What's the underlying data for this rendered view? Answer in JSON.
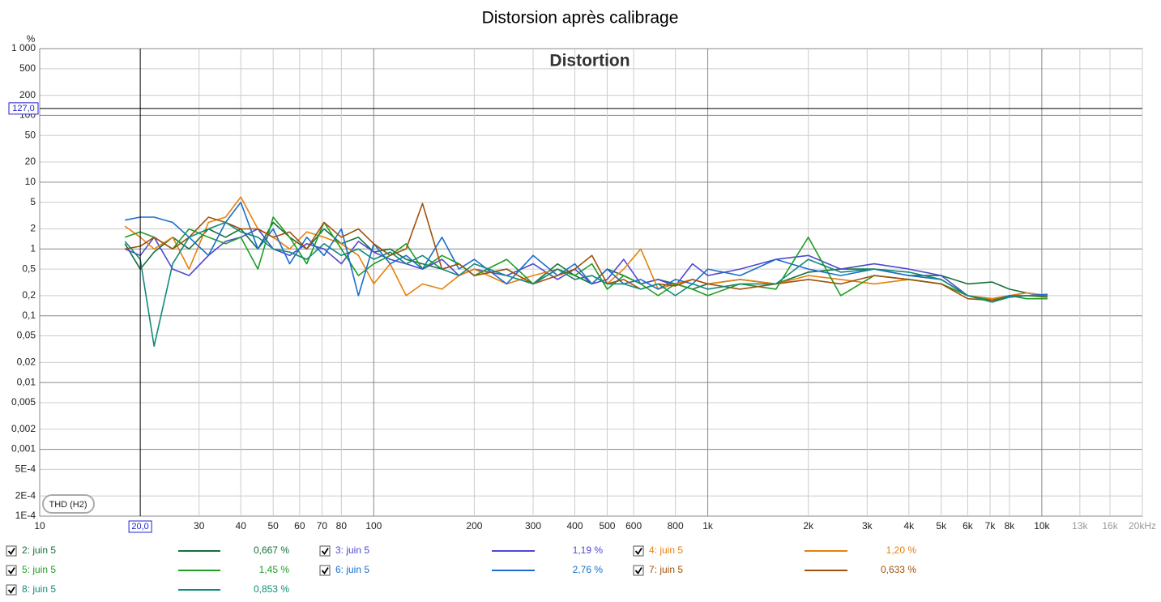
{
  "chart_data": {
    "type": "line",
    "title": "Distorsion après calibrage",
    "plot_title": "Distortion",
    "y_unit": "%",
    "log_x": true,
    "log_y": true,
    "grid": true,
    "xlim": [
      10,
      20000
    ],
    "ylim": [
      0.0001,
      1000
    ],
    "xticks": [
      10,
      30,
      40,
      50,
      60,
      70,
      80,
      100,
      200,
      300,
      400,
      500,
      600,
      800,
      {
        "value": 1000,
        "label": "1k"
      },
      {
        "value": 2000,
        "label": "2k"
      },
      {
        "value": 3000,
        "label": "3k"
      },
      {
        "value": 4000,
        "label": "4k"
      },
      {
        "value": 5000,
        "label": "5k"
      },
      {
        "value": 6000,
        "label": "6k"
      },
      {
        "value": 7000,
        "label": "7k"
      },
      {
        "value": 8000,
        "label": "8k"
      },
      {
        "value": 10000,
        "label": "10k"
      },
      {
        "value": 13000,
        "label": "13k"
      },
      {
        "value": 16000,
        "label": "16k"
      },
      {
        "value": 20000,
        "label": "20kHz"
      }
    ],
    "yticks": [
      {
        "value": 1000,
        "label": "1 000"
      },
      500,
      200,
      100,
      50,
      20,
      10,
      5,
      2,
      1,
      {
        "value": 0.5,
        "label": "0,5"
      },
      {
        "value": 0.2,
        "label": "0,2"
      },
      {
        "value": 0.1,
        "label": "0,1"
      },
      {
        "value": 0.05,
        "label": "0,05"
      },
      {
        "value": 0.02,
        "label": "0,02"
      },
      {
        "value": 0.01,
        "label": "0,01"
      },
      {
        "value": 0.005,
        "label": "0,005"
      },
      {
        "value": 0.002,
        "label": "0,002"
      },
      {
        "value": 0.001,
        "label": "0,001"
      },
      {
        "value": 0.0005,
        "label": "5E-4"
      },
      {
        "value": 0.0002,
        "label": "2E-4"
      },
      {
        "value": 0.0001,
        "label": "1E-4"
      }
    ],
    "cursor": {
      "x": 20,
      "x_label": "20,0",
      "y": 127,
      "y_label": "127,0"
    },
    "button": "THD (H2)",
    "x": [
      18,
      20,
      22,
      25,
      28,
      32,
      36,
      40,
      45,
      50,
      56,
      63,
      71,
      80,
      90,
      100,
      112,
      125,
      140,
      160,
      180,
      200,
      250,
      300,
      355,
      400,
      450,
      500,
      560,
      630,
      710,
      800,
      900,
      1000,
      1250,
      1600,
      2000,
      2500,
      3150,
      4000,
      5000,
      6000,
      7100,
      8000,
      9000,
      10400
    ],
    "series": [
      {
        "name": "2: juin 5",
        "color": "#17703a",
        "readout": "0,667 %",
        "values": [
          1.2,
          0.5,
          0.9,
          1.5,
          1.0,
          2.0,
          1.5,
          2.0,
          1.0,
          2.5,
          1.5,
          1.0,
          2.0,
          1.2,
          1.5,
          0.9,
          1.0,
          0.7,
          0.6,
          0.5,
          0.6,
          0.4,
          0.5,
          0.3,
          0.6,
          0.4,
          0.3,
          0.5,
          0.4,
          0.3,
          0.35,
          0.3,
          0.25,
          0.3,
          0.35,
          0.3,
          0.45,
          0.5,
          0.5,
          0.4,
          0.4,
          0.3,
          0.32,
          0.25,
          0.22,
          0.2
        ]
      },
      {
        "name": "3: juin 5",
        "color": "#5048d0",
        "readout": "1,19 %",
        "values": [
          1.0,
          0.8,
          1.5,
          0.5,
          0.4,
          0.8,
          1.3,
          1.5,
          2.0,
          1.0,
          0.8,
          1.2,
          1.0,
          0.6,
          1.3,
          0.9,
          0.7,
          0.6,
          0.5,
          0.7,
          0.4,
          0.5,
          0.4,
          0.6,
          0.35,
          0.5,
          0.3,
          0.35,
          0.7,
          0.3,
          0.35,
          0.28,
          0.6,
          0.4,
          0.5,
          0.7,
          0.8,
          0.5,
          0.6,
          0.5,
          0.4,
          0.2,
          0.18,
          0.2,
          0.22,
          0.2
        ]
      },
      {
        "name": "4: juin 5",
        "color": "#e8800e",
        "readout": "1,20 %",
        "values": [
          2.2,
          1.5,
          1.0,
          1.5,
          0.5,
          2.5,
          3.0,
          6.0,
          2.0,
          1.5,
          1.0,
          1.8,
          1.5,
          1.2,
          0.8,
          0.3,
          0.6,
          0.2,
          0.3,
          0.25,
          0.4,
          0.5,
          0.3,
          0.4,
          0.5,
          0.35,
          0.4,
          0.3,
          0.5,
          1.0,
          0.25,
          0.3,
          0.35,
          0.3,
          0.35,
          0.3,
          0.4,
          0.35,
          0.3,
          0.35,
          0.3,
          0.2,
          0.18,
          0.2,
          0.22,
          0.2
        ]
      },
      {
        "name": "5: juin 5",
        "color": "#1e9e22",
        "readout": "1,45 %",
        "values": [
          1.5,
          1.8,
          1.5,
          1.0,
          2.0,
          1.5,
          1.2,
          1.5,
          0.5,
          3.0,
          1.5,
          0.6,
          2.5,
          1.0,
          0.4,
          0.6,
          0.8,
          1.2,
          0.5,
          0.8,
          0.6,
          0.4,
          0.7,
          0.3,
          0.5,
          0.4,
          0.6,
          0.25,
          0.4,
          0.3,
          0.2,
          0.3,
          0.25,
          0.2,
          0.3,
          0.25,
          1.5,
          0.2,
          0.4,
          0.35,
          0.3,
          0.2,
          0.17,
          0.2,
          0.18,
          0.18
        ]
      },
      {
        "name": "6: juin 5",
        "color": "#1a6ecc",
        "readout": "2,76 %",
        "values": [
          2.7,
          3.0,
          3.0,
          2.5,
          1.5,
          0.8,
          2.5,
          5.0,
          1.0,
          2.0,
          0.6,
          1.5,
          0.8,
          2.0,
          0.2,
          1.2,
          0.6,
          0.8,
          0.5,
          1.5,
          0.5,
          0.7,
          0.3,
          0.8,
          0.4,
          0.6,
          0.3,
          0.5,
          0.3,
          0.35,
          0.25,
          0.35,
          0.3,
          0.5,
          0.4,
          0.7,
          0.5,
          0.4,
          0.5,
          0.4,
          0.35,
          0.2,
          0.16,
          0.2,
          0.2,
          0.21
        ]
      },
      {
        "name": "7: juin 5",
        "color": "#a0520c",
        "readout": "0,633 %",
        "values": [
          1.0,
          1.1,
          1.5,
          1.0,
          1.5,
          3.0,
          2.5,
          2.0,
          2.0,
          1.5,
          1.8,
          1.0,
          2.5,
          1.5,
          2.0,
          1.2,
          0.8,
          1.0,
          4.8,
          0.5,
          0.6,
          0.4,
          0.5,
          0.3,
          0.4,
          0.5,
          0.8,
          0.3,
          0.35,
          0.25,
          0.3,
          0.28,
          0.35,
          0.3,
          0.25,
          0.3,
          0.35,
          0.3,
          0.4,
          0.35,
          0.3,
          0.18,
          0.17,
          0.19,
          0.2,
          0.19
        ]
      },
      {
        "name": "8: juin 5",
        "color": "#108a7a",
        "readout": "0,853 %",
        "values": [
          1.3,
          0.7,
          0.035,
          0.6,
          1.5,
          2.0,
          2.5,
          1.8,
          1.5,
          1.0,
          0.9,
          0.7,
          1.2,
          0.8,
          1.0,
          0.7,
          0.9,
          0.6,
          0.8,
          0.5,
          0.4,
          0.6,
          0.4,
          0.3,
          0.5,
          0.35,
          0.4,
          0.3,
          0.3,
          0.25,
          0.3,
          0.2,
          0.3,
          0.25,
          0.3,
          0.3,
          0.7,
          0.45,
          0.5,
          0.45,
          0.35,
          0.2,
          0.16,
          0.19,
          0.2,
          0.2
        ]
      }
    ]
  }
}
